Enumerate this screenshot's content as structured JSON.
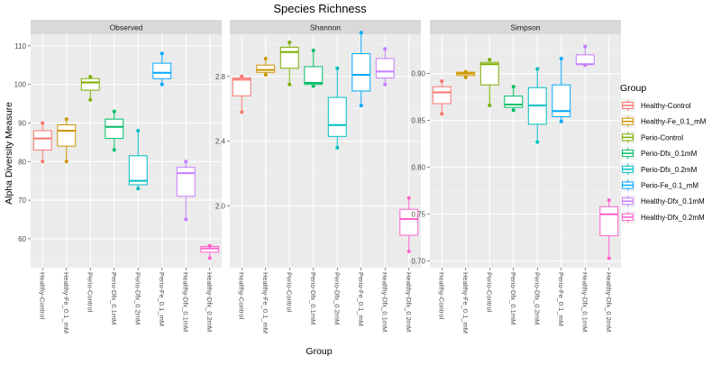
{
  "chart_data": {
    "type": "boxplot",
    "title": "Species Richness",
    "xlabel": "Group",
    "ylabel": "Alpha Diversity Measure",
    "legend": {
      "title": "Group",
      "placement": "right",
      "entries": [
        {
          "name": "Healthy-Control",
          "color": "#F8766D"
        },
        {
          "name": "Healthy-Fe_0.1_mM",
          "color": "#CD9600"
        },
        {
          "name": "Perio-Control",
          "color": "#7CAE00"
        },
        {
          "name": "Perio-Dfx_0.1mM",
          "color": "#00BE67"
        },
        {
          "name": "Perio-Dfx_0.2mM",
          "color": "#00BFC4"
        },
        {
          "name": "Perio-Fe_0.1_mM",
          "color": "#00A9FF"
        },
        {
          "name": "Healthy-Dfx_0.1mM",
          "color": "#C77CFF"
        },
        {
          "name": "Healthy-Dfx_0.2mM",
          "color": "#FF61CC"
        }
      ]
    },
    "categories": [
      "Healthy-Control",
      "Healthy-Fe_0.1_mM",
      "Perio-Control",
      "Perio-Dfx_0.1mM",
      "Perio-Dfx_0.2mM",
      "Perio-Fe_0.1_mM",
      "Healthy-Dfx_0.1mM",
      "Healthy-Dfx_0.2mM"
    ],
    "grid": true,
    "panels": [
      {
        "name": "Observed",
        "ylim": [
          52.5,
          113
        ],
        "yticks": [
          60,
          70,
          80,
          90,
          100,
          110
        ],
        "tick_labels": [
          "60",
          "70",
          "80",
          "90",
          "100",
          "110"
        ],
        "boxes": [
          {
            "min": 80,
            "q1": 83,
            "median": 86,
            "q3": 88,
            "max": 90,
            "points": [
              80,
              90
            ]
          },
          {
            "min": 80,
            "q1": 84,
            "median": 88,
            "q3": 89.5,
            "max": 91,
            "points": [
              80,
              91
            ]
          },
          {
            "min": 96,
            "q1": 98.5,
            "median": 100.5,
            "q3": 101.5,
            "max": 102,
            "points": [
              96,
              102
            ]
          },
          {
            "min": 83,
            "q1": 86,
            "median": 89,
            "q3": 91,
            "max": 93,
            "points": [
              83,
              93
            ]
          },
          {
            "min": 73,
            "q1": 74,
            "median": 75,
            "q3": 81.5,
            "max": 88,
            "points": [
              73,
              88
            ]
          },
          {
            "min": 100,
            "q1": 101.5,
            "median": 103,
            "q3": 105.5,
            "max": 108,
            "points": [
              100,
              108
            ]
          },
          {
            "min": 65,
            "q1": 71,
            "median": 77,
            "q3": 78.5,
            "max": 80,
            "points": [
              65,
              80
            ]
          },
          {
            "min": 55,
            "q1": 56.5,
            "median": 57.5,
            "q3": 58,
            "max": 58.2,
            "points": [
              55,
              58.2
            ]
          }
        ]
      },
      {
        "name": "Shannon",
        "ylim": [
          1.62,
          3.06
        ],
        "yticks": [
          2.0,
          2.4,
          2.8
        ],
        "tick_labels": [
          "2.0",
          "2.4",
          "2.8"
        ],
        "boxes": [
          {
            "min": 2.58,
            "q1": 2.68,
            "median": 2.78,
            "q3": 2.79,
            "max": 2.8,
            "points": [
              2.58,
              2.8
            ]
          },
          {
            "min": 2.81,
            "q1": 2.825,
            "median": 2.84,
            "q3": 2.87,
            "max": 2.91,
            "points": [
              2.81,
              2.91
            ]
          },
          {
            "min": 2.75,
            "q1": 2.85,
            "median": 2.95,
            "q3": 2.98,
            "max": 3.01,
            "points": [
              2.75,
              3.01
            ]
          },
          {
            "min": 2.74,
            "q1": 2.75,
            "median": 2.76,
            "q3": 2.86,
            "max": 2.96,
            "points": [
              2.74,
              2.96
            ]
          },
          {
            "min": 2.36,
            "q1": 2.43,
            "median": 2.5,
            "q3": 2.67,
            "max": 2.85,
            "points": [
              2.36,
              2.85
            ]
          },
          {
            "min": 2.62,
            "q1": 2.71,
            "median": 2.81,
            "q3": 2.94,
            "max": 3.07,
            "points": [
              2.62,
              3.07
            ]
          },
          {
            "min": 2.75,
            "q1": 2.79,
            "median": 2.83,
            "q3": 2.91,
            "max": 2.97,
            "points": [
              2.75,
              2.97
            ]
          },
          {
            "min": 1.72,
            "q1": 1.82,
            "median": 1.92,
            "q3": 1.98,
            "max": 2.05,
            "points": [
              1.72,
              2.05
            ]
          }
        ]
      },
      {
        "name": "Simpson",
        "ylim": [
          0.693,
          0.942
        ],
        "yticks": [
          0.7,
          0.75,
          0.8,
          0.85,
          0.9
        ],
        "tick_labels": [
          "0.70",
          "0.75",
          "0.80",
          "0.85",
          "0.90"
        ],
        "boxes": [
          {
            "min": 0.857,
            "q1": 0.868,
            "median": 0.88,
            "q3": 0.886,
            "max": 0.892,
            "points": [
              0.857,
              0.892
            ]
          },
          {
            "min": 0.896,
            "q1": 0.898,
            "median": 0.9,
            "q3": 0.9015,
            "max": 0.902,
            "points": [
              0.896,
              0.902
            ]
          },
          {
            "min": 0.866,
            "q1": 0.888,
            "median": 0.91,
            "q3": 0.912,
            "max": 0.915,
            "points": [
              0.866,
              0.915
            ]
          },
          {
            "min": 0.861,
            "q1": 0.864,
            "median": 0.867,
            "q3": 0.876,
            "max": 0.886,
            "points": [
              0.861,
              0.886
            ]
          },
          {
            "min": 0.827,
            "q1": 0.846,
            "median": 0.866,
            "q3": 0.885,
            "max": 0.905,
            "points": [
              0.827,
              0.905
            ]
          },
          {
            "min": 0.849,
            "q1": 0.854,
            "median": 0.86,
            "q3": 0.888,
            "max": 0.916,
            "points": [
              0.849,
              0.916
            ]
          },
          {
            "min": 0.909,
            "q1": 0.91,
            "median": 0.91,
            "q3": 0.92,
            "max": 0.929,
            "points": [
              0.909,
              0.929
            ]
          },
          {
            "min": 0.703,
            "q1": 0.727,
            "median": 0.75,
            "q3": 0.758,
            "max": 0.765,
            "points": [
              0.703,
              0.765
            ]
          }
        ]
      }
    ]
  }
}
